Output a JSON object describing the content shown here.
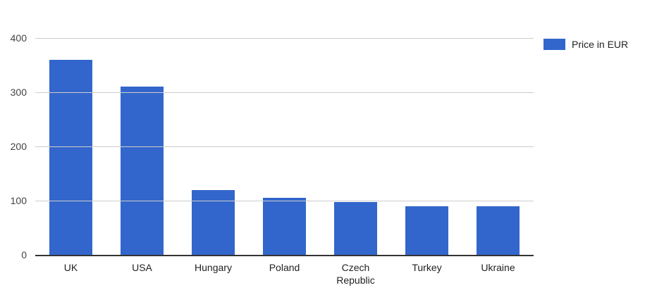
{
  "chart_data": {
    "type": "bar",
    "title": "",
    "xlabel": "",
    "ylabel": "",
    "categories": [
      "UK",
      "USA",
      "Hungary",
      "Poland",
      "Czech Republic",
      "Turkey",
      "Ukraine"
    ],
    "series": [
      {
        "name": "Price in EUR",
        "values": [
          360,
          310,
          120,
          105,
          98,
          89,
          89
        ]
      }
    ],
    "ylim": [
      0,
      400
    ],
    "yticks": [
      0,
      100,
      200,
      300,
      400
    ],
    "grid": true,
    "legend_position": "right",
    "bar_color": "#3366cc"
  },
  "legend": {
    "label": "Price in EUR",
    "swatch_color": "#3366cc"
  },
  "colors": {
    "bar": "#3366cc",
    "gridline": "#cccccc",
    "axis_line": "#333333",
    "y_axis_text": "#444444",
    "x_axis_text": "#222222",
    "legend_text": "#222222",
    "background": "#ffffff"
  }
}
